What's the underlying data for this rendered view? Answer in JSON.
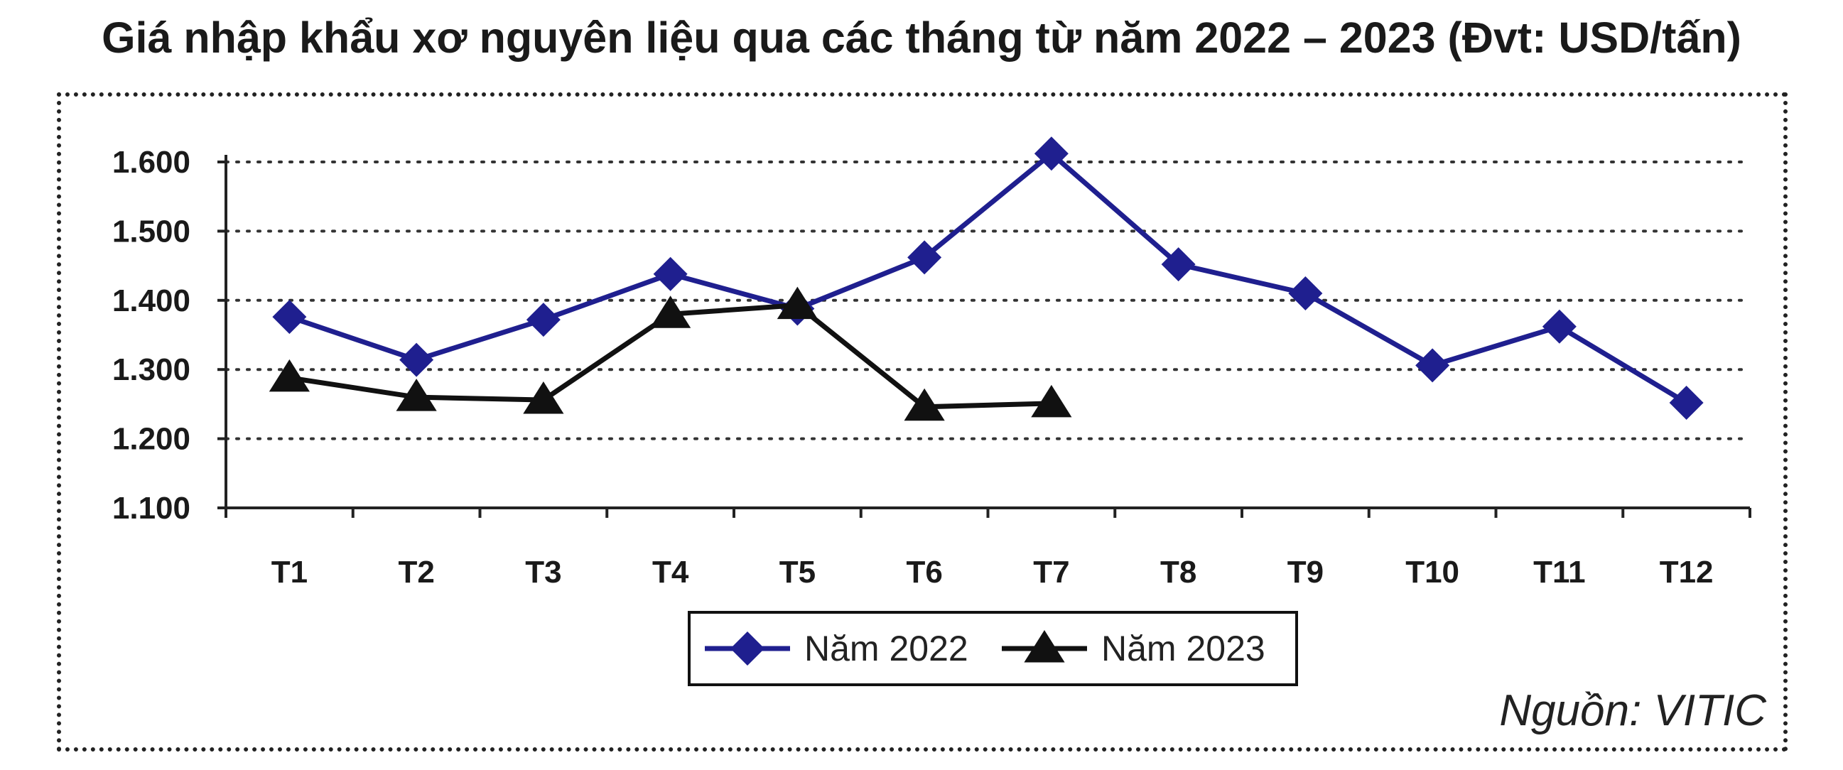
{
  "title": "Giá nhập khẩu xơ nguyên liệu qua các tháng từ năm 2022 – 2023 (Đvt: USD/tấn)",
  "source": "Nguồn: VITIC",
  "colors": {
    "series_2022": "#1f1f8f",
    "series_2023": "#111111",
    "grid": "#333333",
    "axis": "#222222"
  },
  "chart_data": {
    "type": "line",
    "categories": [
      "T1",
      "T2",
      "T3",
      "T4",
      "T5",
      "T6",
      "T7",
      "T8",
      "T9",
      "T10",
      "T11",
      "T12"
    ],
    "series": [
      {
        "name": "Năm 2022",
        "marker": "diamond",
        "values": [
          1376,
          1314,
          1372,
          1438,
          1388,
          1462,
          1612,
          1452,
          1410,
          1306,
          1362,
          1252
        ]
      },
      {
        "name": "Năm 2023",
        "marker": "triangle",
        "values": [
          1288,
          1260,
          1256,
          1380,
          1393,
          1246,
          1251,
          null,
          null,
          null,
          null,
          null
        ]
      }
    ],
    "yticks": [
      "1.100",
      "1.200",
      "1.300",
      "1.400",
      "1.500",
      "1.600"
    ],
    "ylim": [
      1100,
      1600
    ],
    "grid": true,
    "legend_position": "bottom-center"
  }
}
